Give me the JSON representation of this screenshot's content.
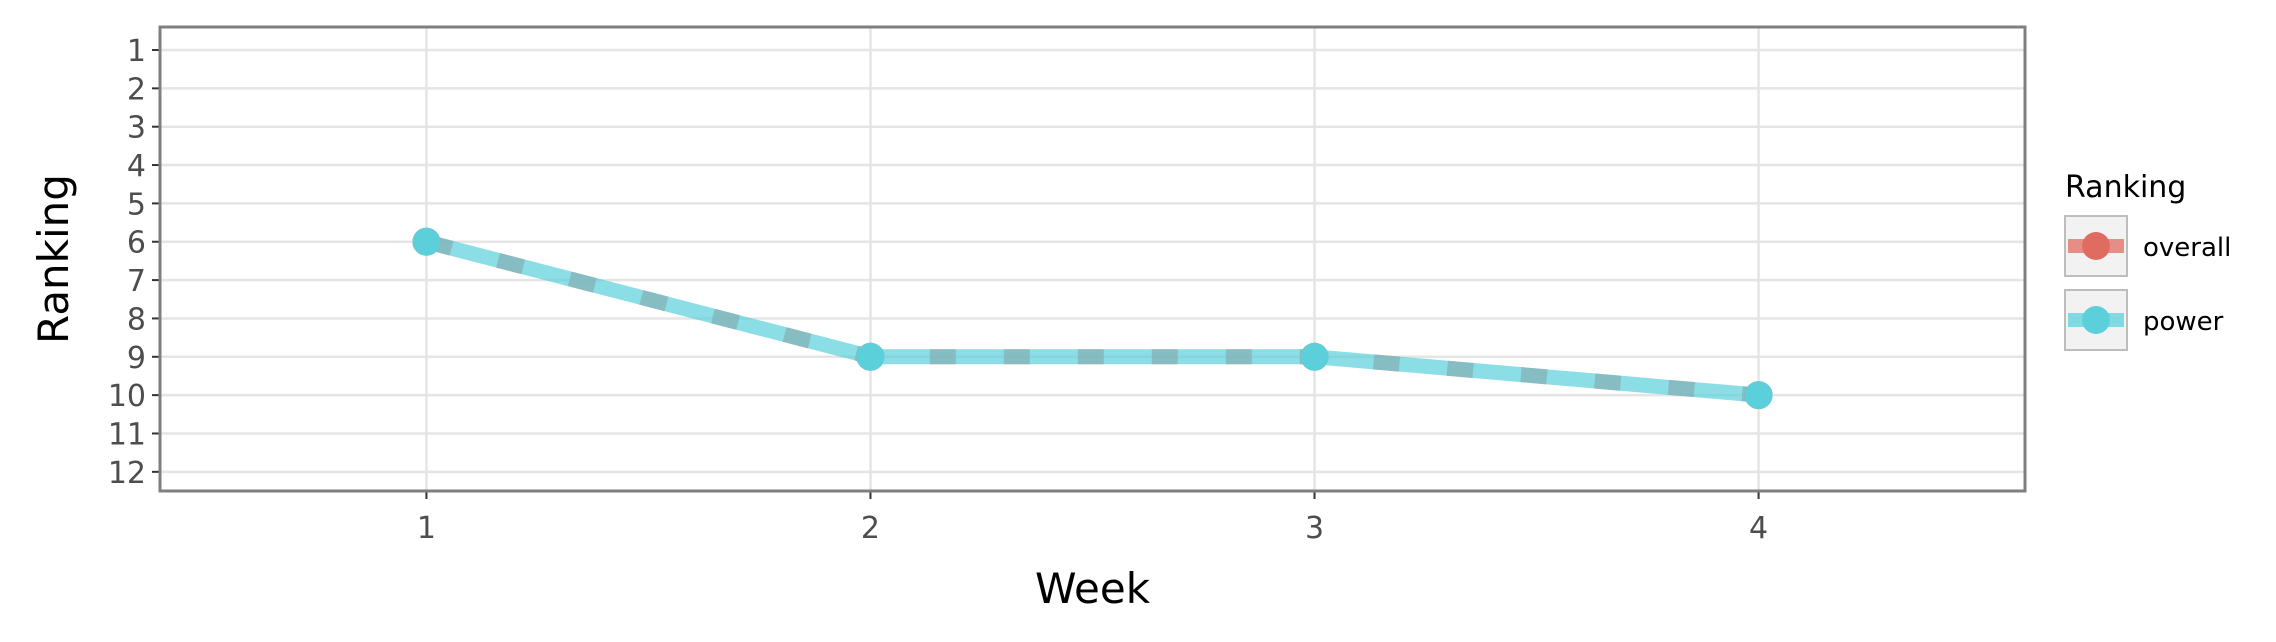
{
  "chart_data": {
    "type": "line",
    "xlabel": "Week",
    "ylabel": "Ranking",
    "x": [
      1,
      2,
      3,
      4
    ],
    "x_ticks": [
      1,
      2,
      3,
      4
    ],
    "xlim": [
      0.4,
      4.6
    ],
    "y_ticks": [
      1,
      2,
      3,
      4,
      5,
      6,
      7,
      8,
      9,
      10,
      11,
      12
    ],
    "ylim": [
      12.5,
      0.4
    ],
    "y_reversed": true,
    "grid": true,
    "legend": {
      "title": "Ranking",
      "position": "right"
    },
    "series": [
      {
        "name": "overall",
        "values": [
          6,
          9,
          9,
          10
        ],
        "color": "#e06c61",
        "line_style": "dashed"
      },
      {
        "name": "power",
        "values": [
          6,
          9,
          9,
          10
        ],
        "color": "#5bd0db",
        "line_style": "solid"
      }
    ]
  }
}
